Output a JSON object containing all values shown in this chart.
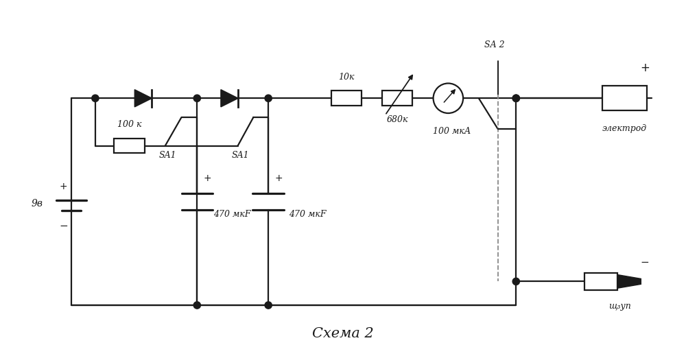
{
  "title": "Схема 2",
  "background_color": "#ffffff",
  "line_color": "#1a1a1a",
  "line_width": 1.6,
  "fig_width": 10.0,
  "fig_height": 5.22,
  "labels": {
    "resistor1": "100 к",
    "resistor2": "10к",
    "resistor3": "680к",
    "cap1": "470 мкF",
    "cap2": "470 мкF",
    "ammeter": "100 мкА",
    "battery": "9в",
    "sa1_1": "SA1",
    "sa1_2": "SA1",
    "sa2": "SA 2",
    "plus_batt": "+",
    "minus_batt": "−",
    "plus_top": "+",
    "minus_elec": "−",
    "elektrod": "электрод",
    "shchup": "щ₃уп",
    "title": "Схема 2"
  }
}
